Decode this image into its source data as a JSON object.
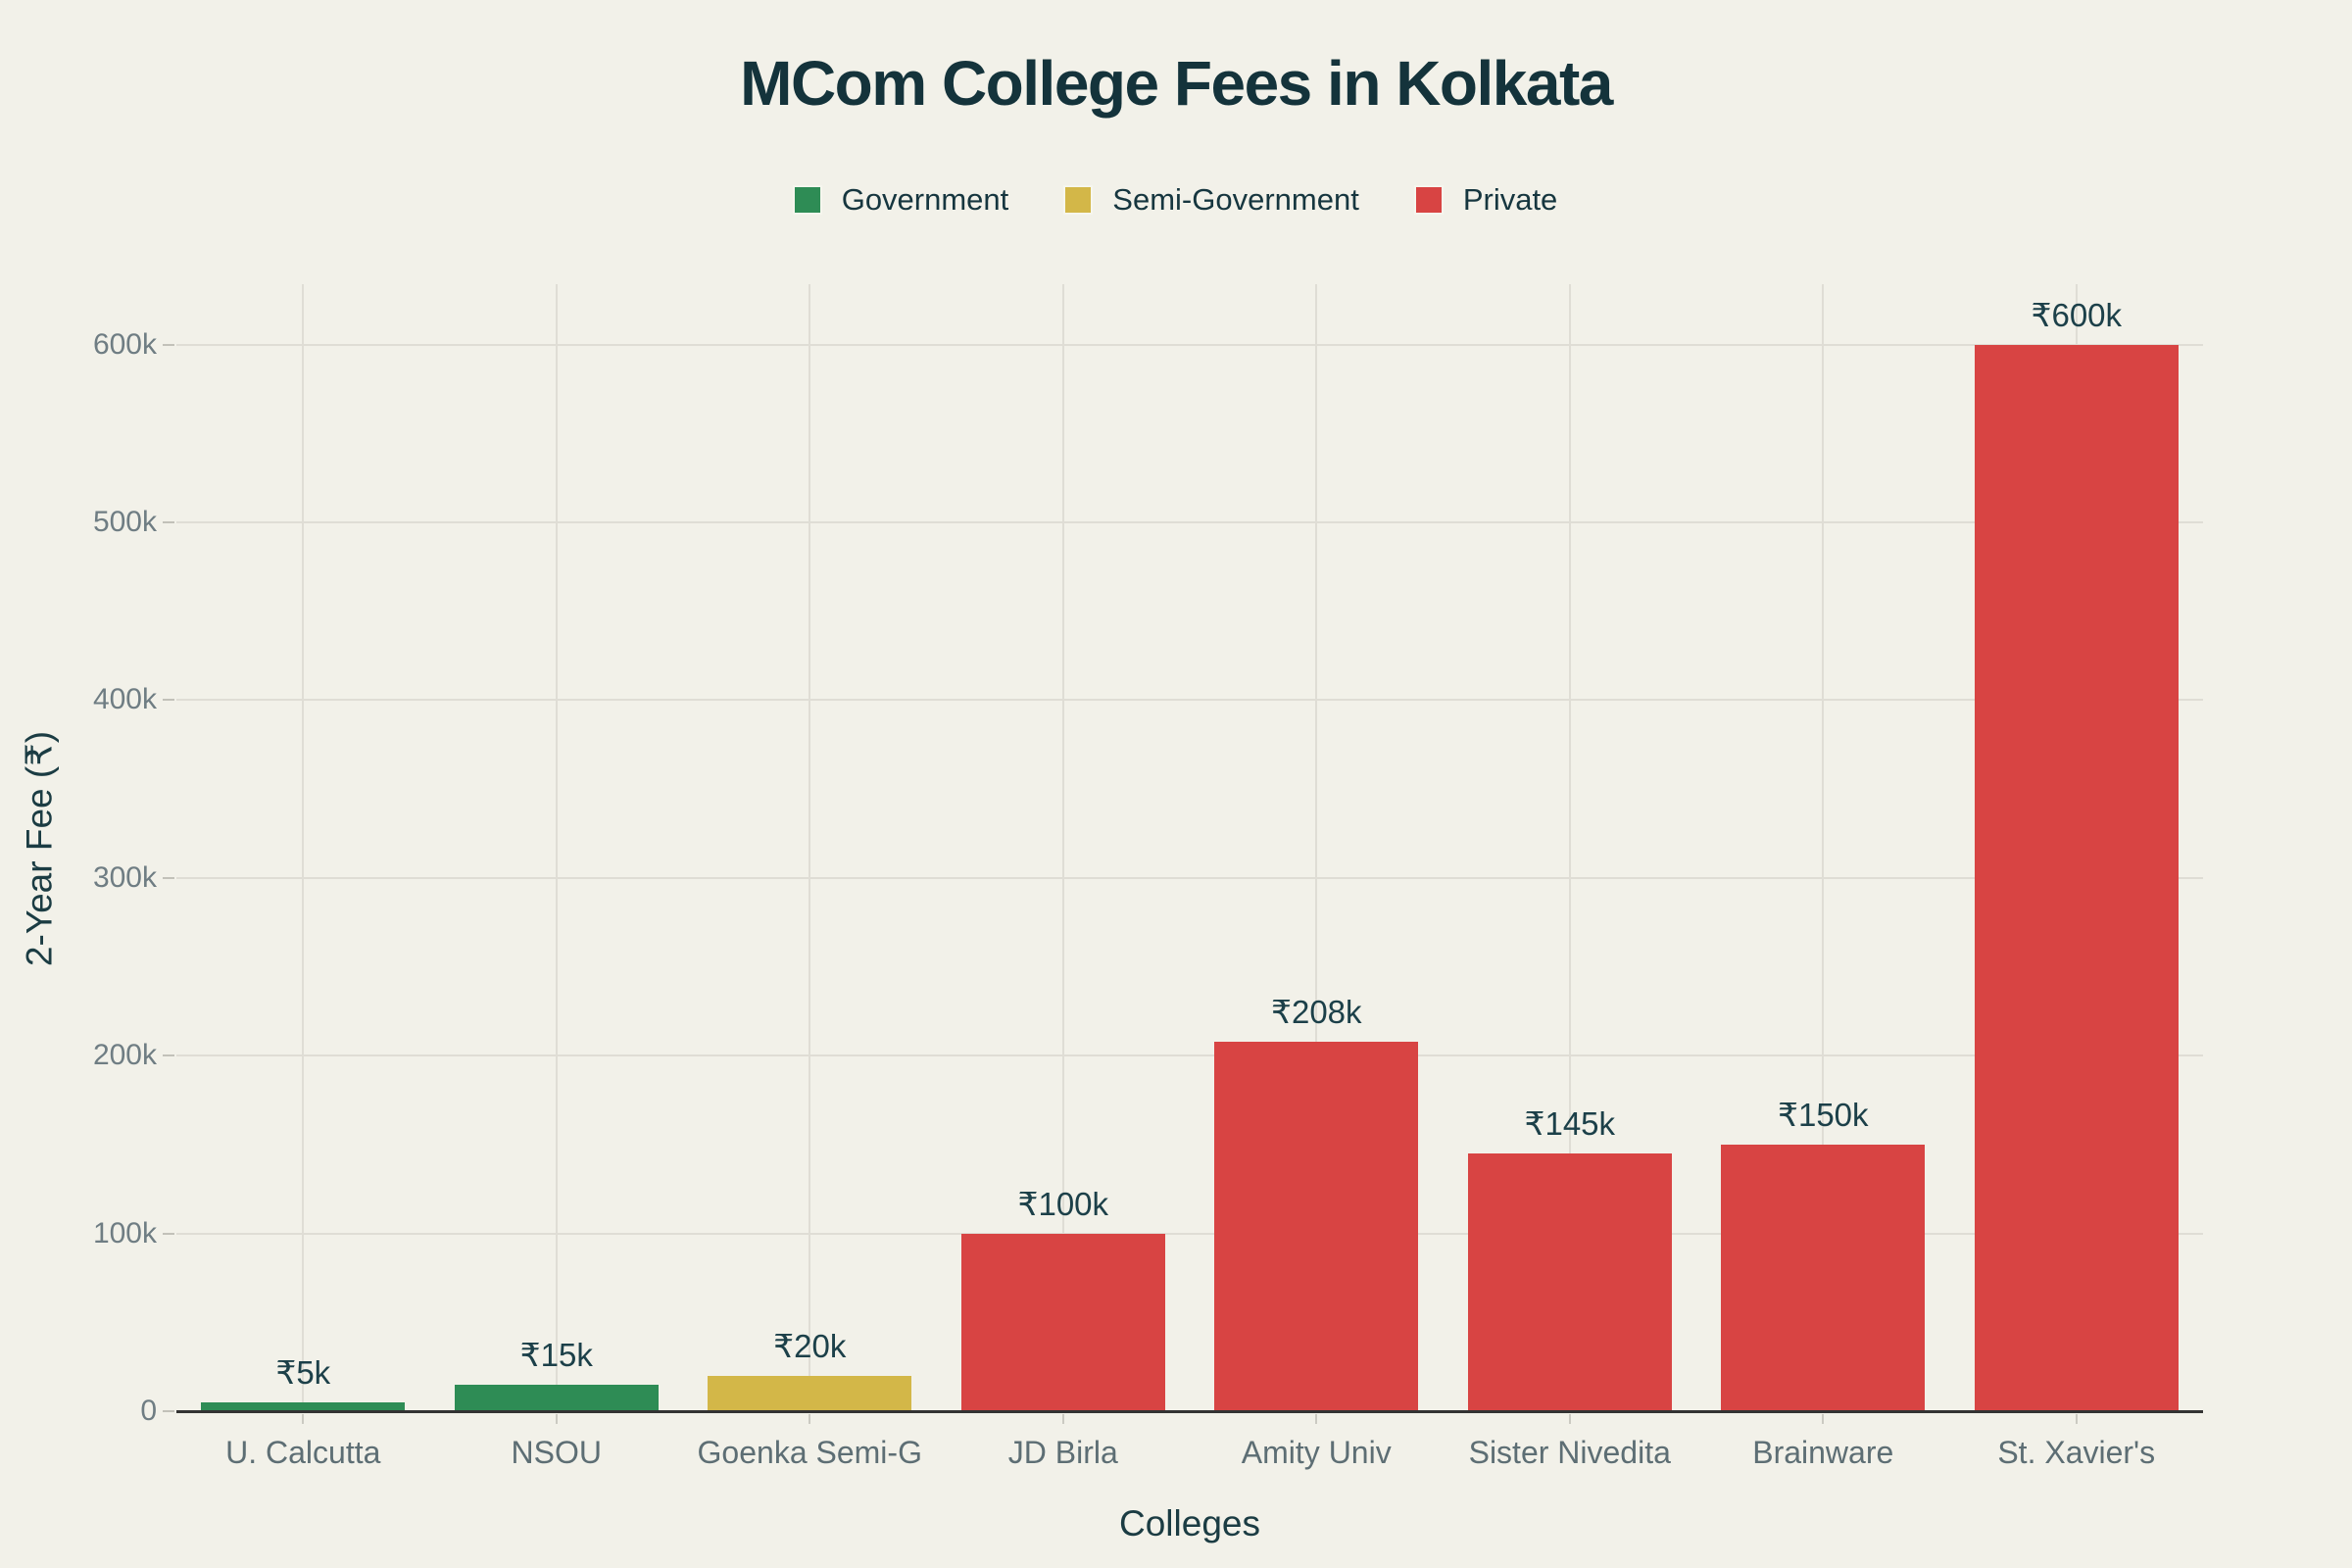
{
  "title": "MCom College Fees in Kolkata",
  "legend": {
    "items": [
      {
        "label": "Government",
        "color": "#2e8c55"
      },
      {
        "label": "Semi-Government",
        "color": "#d3b748"
      },
      {
        "label": "Private",
        "color": "#d84443"
      }
    ]
  },
  "chart_data": {
    "type": "bar",
    "title": "MCom College Fees in Kolkata",
    "xlabel": "Colleges",
    "ylabel": "2-Year Fee (₹)",
    "categories": [
      "U. Calcutta",
      "NSOU",
      "Goenka Semi-G",
      "JD Birla",
      "Amity Univ",
      "Sister Nivedita",
      "Brainware",
      "St. Xavier's"
    ],
    "values": [
      5000,
      15000,
      20000,
      100000,
      208000,
      145000,
      150000,
      600000
    ],
    "value_labels": [
      "₹5k",
      "₹15k",
      "₹20k",
      "₹100k",
      "₹208k",
      "₹145k",
      "₹150k",
      "₹600k"
    ],
    "bar_groups": [
      "Government",
      "Government",
      "Semi-Government",
      "Private",
      "Private",
      "Private",
      "Private",
      "Private"
    ],
    "group_colors": {
      "Government": "#2e8c55",
      "Semi-Government": "#d3b748",
      "Private": "#d84443"
    },
    "y_ticks": [
      0,
      100000,
      200000,
      300000,
      400000,
      500000,
      600000
    ],
    "y_tick_labels": [
      "0",
      "100k",
      "200k",
      "300k",
      "400k",
      "500k",
      "600k"
    ],
    "ylim": [
      0,
      634000
    ],
    "grid": true,
    "legend_position": "top"
  },
  "style": {
    "background": "#f2f1e9",
    "grid_color": "#dfddd5",
    "axis_color": "#333333",
    "title_color": "#14333b",
    "value_label_color": "#1c4049",
    "tick_label_color": "#6f7d83",
    "category_label_color": "#5d6e74"
  }
}
